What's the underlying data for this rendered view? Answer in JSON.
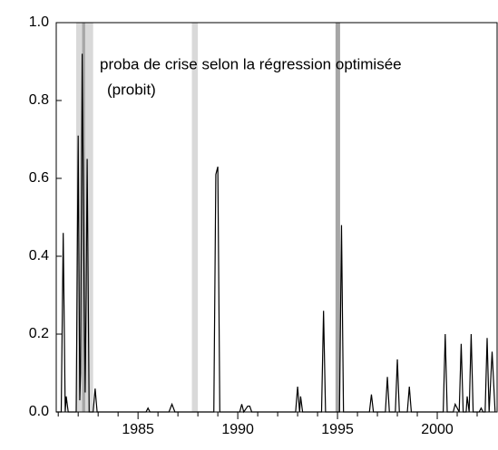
{
  "chart_data": {
    "type": "line",
    "annotations": [
      "proba de crise selon la régression optimisée",
      "(probit)"
    ],
    "shaded_regions": [
      {
        "start": 1981.9,
        "end": 1982.75,
        "color": "#d9d9d9"
      },
      {
        "start": 1982.2,
        "end": 1982.35,
        "color": "#a6a6a6"
      },
      {
        "start": 1987.7,
        "end": 1988.0,
        "color": "#d9d9d9"
      },
      {
        "start": 1994.9,
        "end": 1995.13,
        "color": "#a6a6a6"
      }
    ],
    "x": [
      1980.9,
      1981.15,
      1981.25,
      1981.35,
      1981.4,
      1981.5,
      1981.9,
      1982.0,
      1982.08,
      1982.12,
      1982.2,
      1982.3,
      1982.35,
      1982.4,
      1982.45,
      1982.55,
      1982.75,
      1982.85,
      1982.95,
      1985.4,
      1985.5,
      1985.6,
      1986.55,
      1986.7,
      1986.85,
      1988.8,
      1988.9,
      1989.0,
      1989.1,
      1990.1,
      1990.2,
      1990.3,
      1990.5,
      1990.6,
      1990.7,
      1992.9,
      1993.0,
      1993.1,
      1993.15,
      1993.25,
      1994.2,
      1994.3,
      1994.4,
      1995.1,
      1995.2,
      1995.3,
      1996.6,
      1996.7,
      1996.8,
      1997.4,
      1997.5,
      1997.6,
      1997.9,
      1998.0,
      1998.1,
      1998.5,
      1998.6,
      1998.7,
      2000.3,
      2000.4,
      2000.5,
      2000.8,
      2000.9,
      2001.1,
      2001.2,
      2001.3,
      2001.45,
      2001.5,
      2001.6,
      2001.7,
      2001.8,
      2002.1,
      2002.2,
      2002.3,
      2002.4,
      2002.5,
      2002.6,
      2002.75,
      2002.9
    ],
    "series": [
      {
        "color": "#000000",
        "values": [
          0,
          0,
          0.46,
          0,
          0.04,
          0,
          0,
          0.71,
          0.03,
          0.1,
          0.92,
          0.3,
          0.05,
          0.3,
          0.65,
          0,
          0,
          0.06,
          0,
          0,
          0.01,
          0,
          0,
          0.02,
          0,
          0,
          0.61,
          0.63,
          0,
          0,
          0.02,
          0,
          0.015,
          0.015,
          0,
          0,
          0.065,
          0,
          0.04,
          0,
          0,
          0.26,
          0,
          0,
          0.48,
          0,
          0,
          0.045,
          0,
          0,
          0.09,
          0,
          0,
          0.135,
          0,
          0,
          0.065,
          0,
          0,
          0.2,
          0,
          0,
          0.02,
          0,
          0.175,
          0,
          0,
          0.04,
          0,
          0.2,
          0,
          0,
          0.01,
          0,
          0,
          0.19,
          0,
          0.155,
          0
        ]
      }
    ],
    "xlim": [
      1980.9,
      2003.0
    ],
    "xticks": [
      1985,
      1990,
      1995,
      2000
    ],
    "xminorticks": [
      1981,
      1982,
      1983,
      1984,
      1986,
      1987,
      1988,
      1989,
      1991,
      1992,
      1993,
      1994,
      1996,
      1997,
      1998,
      1999,
      2001,
      2002
    ],
    "ylim": [
      0,
      1
    ],
    "yticks": [
      {
        "value": 0,
        "label": "0.0"
      },
      {
        "value": 0.2,
        "label": "0.2"
      },
      {
        "value": 0.4,
        "label": "0.4"
      },
      {
        "value": 0.6,
        "label": "0.6"
      },
      {
        "value": 0.8,
        "label": "0.8"
      },
      {
        "value": 1,
        "label": "1.0"
      }
    ]
  }
}
